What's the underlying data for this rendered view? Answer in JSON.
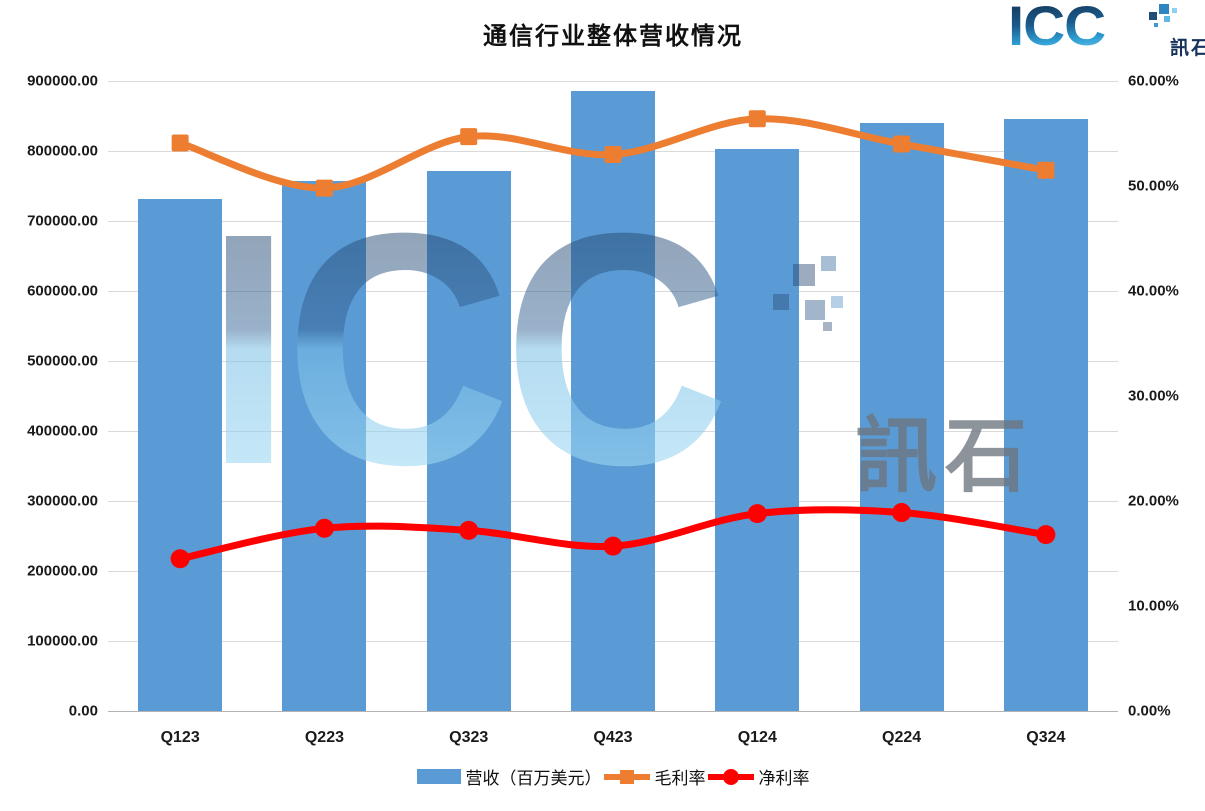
{
  "header": {
    "title": "通信行业整体营收情况"
  },
  "logo": {
    "text": "ICC",
    "subtext": "訊石"
  },
  "watermark": {
    "text": "ICC",
    "subtext": "訊石"
  },
  "colors": {
    "bar": "#5B9BD5",
    "gross_margin_line": "#ED7D31",
    "net_margin_line": "#FF0000",
    "gridline": "#d9d9d9"
  },
  "chart_data": {
    "type": "bar",
    "subtype": "combo-bar-line-dual-axis",
    "title": "通信行业整体营收情况",
    "categories": [
      "Q123",
      "Q223",
      "Q323",
      "Q423",
      "Q124",
      "Q224",
      "Q324"
    ],
    "series": [
      {
        "name": "营收（百万美元）",
        "type": "bar",
        "axis": "left",
        "marker": "rect",
        "color": "#5B9BD5",
        "values": [
          732000,
          757000,
          771000,
          886000,
          803000,
          840000,
          846000
        ]
      },
      {
        "name": "毛利率",
        "type": "line",
        "axis": "right",
        "marker": "square",
        "color": "#ED7D31",
        "values": [
          54.1,
          49.8,
          54.7,
          53.0,
          56.4,
          54.0,
          51.5
        ]
      },
      {
        "name": "净利率",
        "type": "line",
        "axis": "right",
        "marker": "circle",
        "color": "#FF0000",
        "values": [
          14.5,
          17.4,
          17.2,
          15.7,
          18.8,
          18.9,
          16.8
        ]
      }
    ],
    "left_axis": {
      "min": 0,
      "max": 900000,
      "step": 100000,
      "tick_labels": [
        "900000.00",
        "800000.00",
        "700000.00",
        "600000.00",
        "500000.00",
        "400000.00",
        "300000.00",
        "200000.00",
        "100000.00",
        "0.00"
      ]
    },
    "right_axis": {
      "min": 0,
      "max": 60,
      "step": 10,
      "unit": "%",
      "tick_labels": [
        "60.00%",
        "50.00%",
        "40.00%",
        "30.00%",
        "20.00%",
        "10.00%",
        "0.00%"
      ]
    },
    "grid": true,
    "legend_position": "bottom"
  }
}
